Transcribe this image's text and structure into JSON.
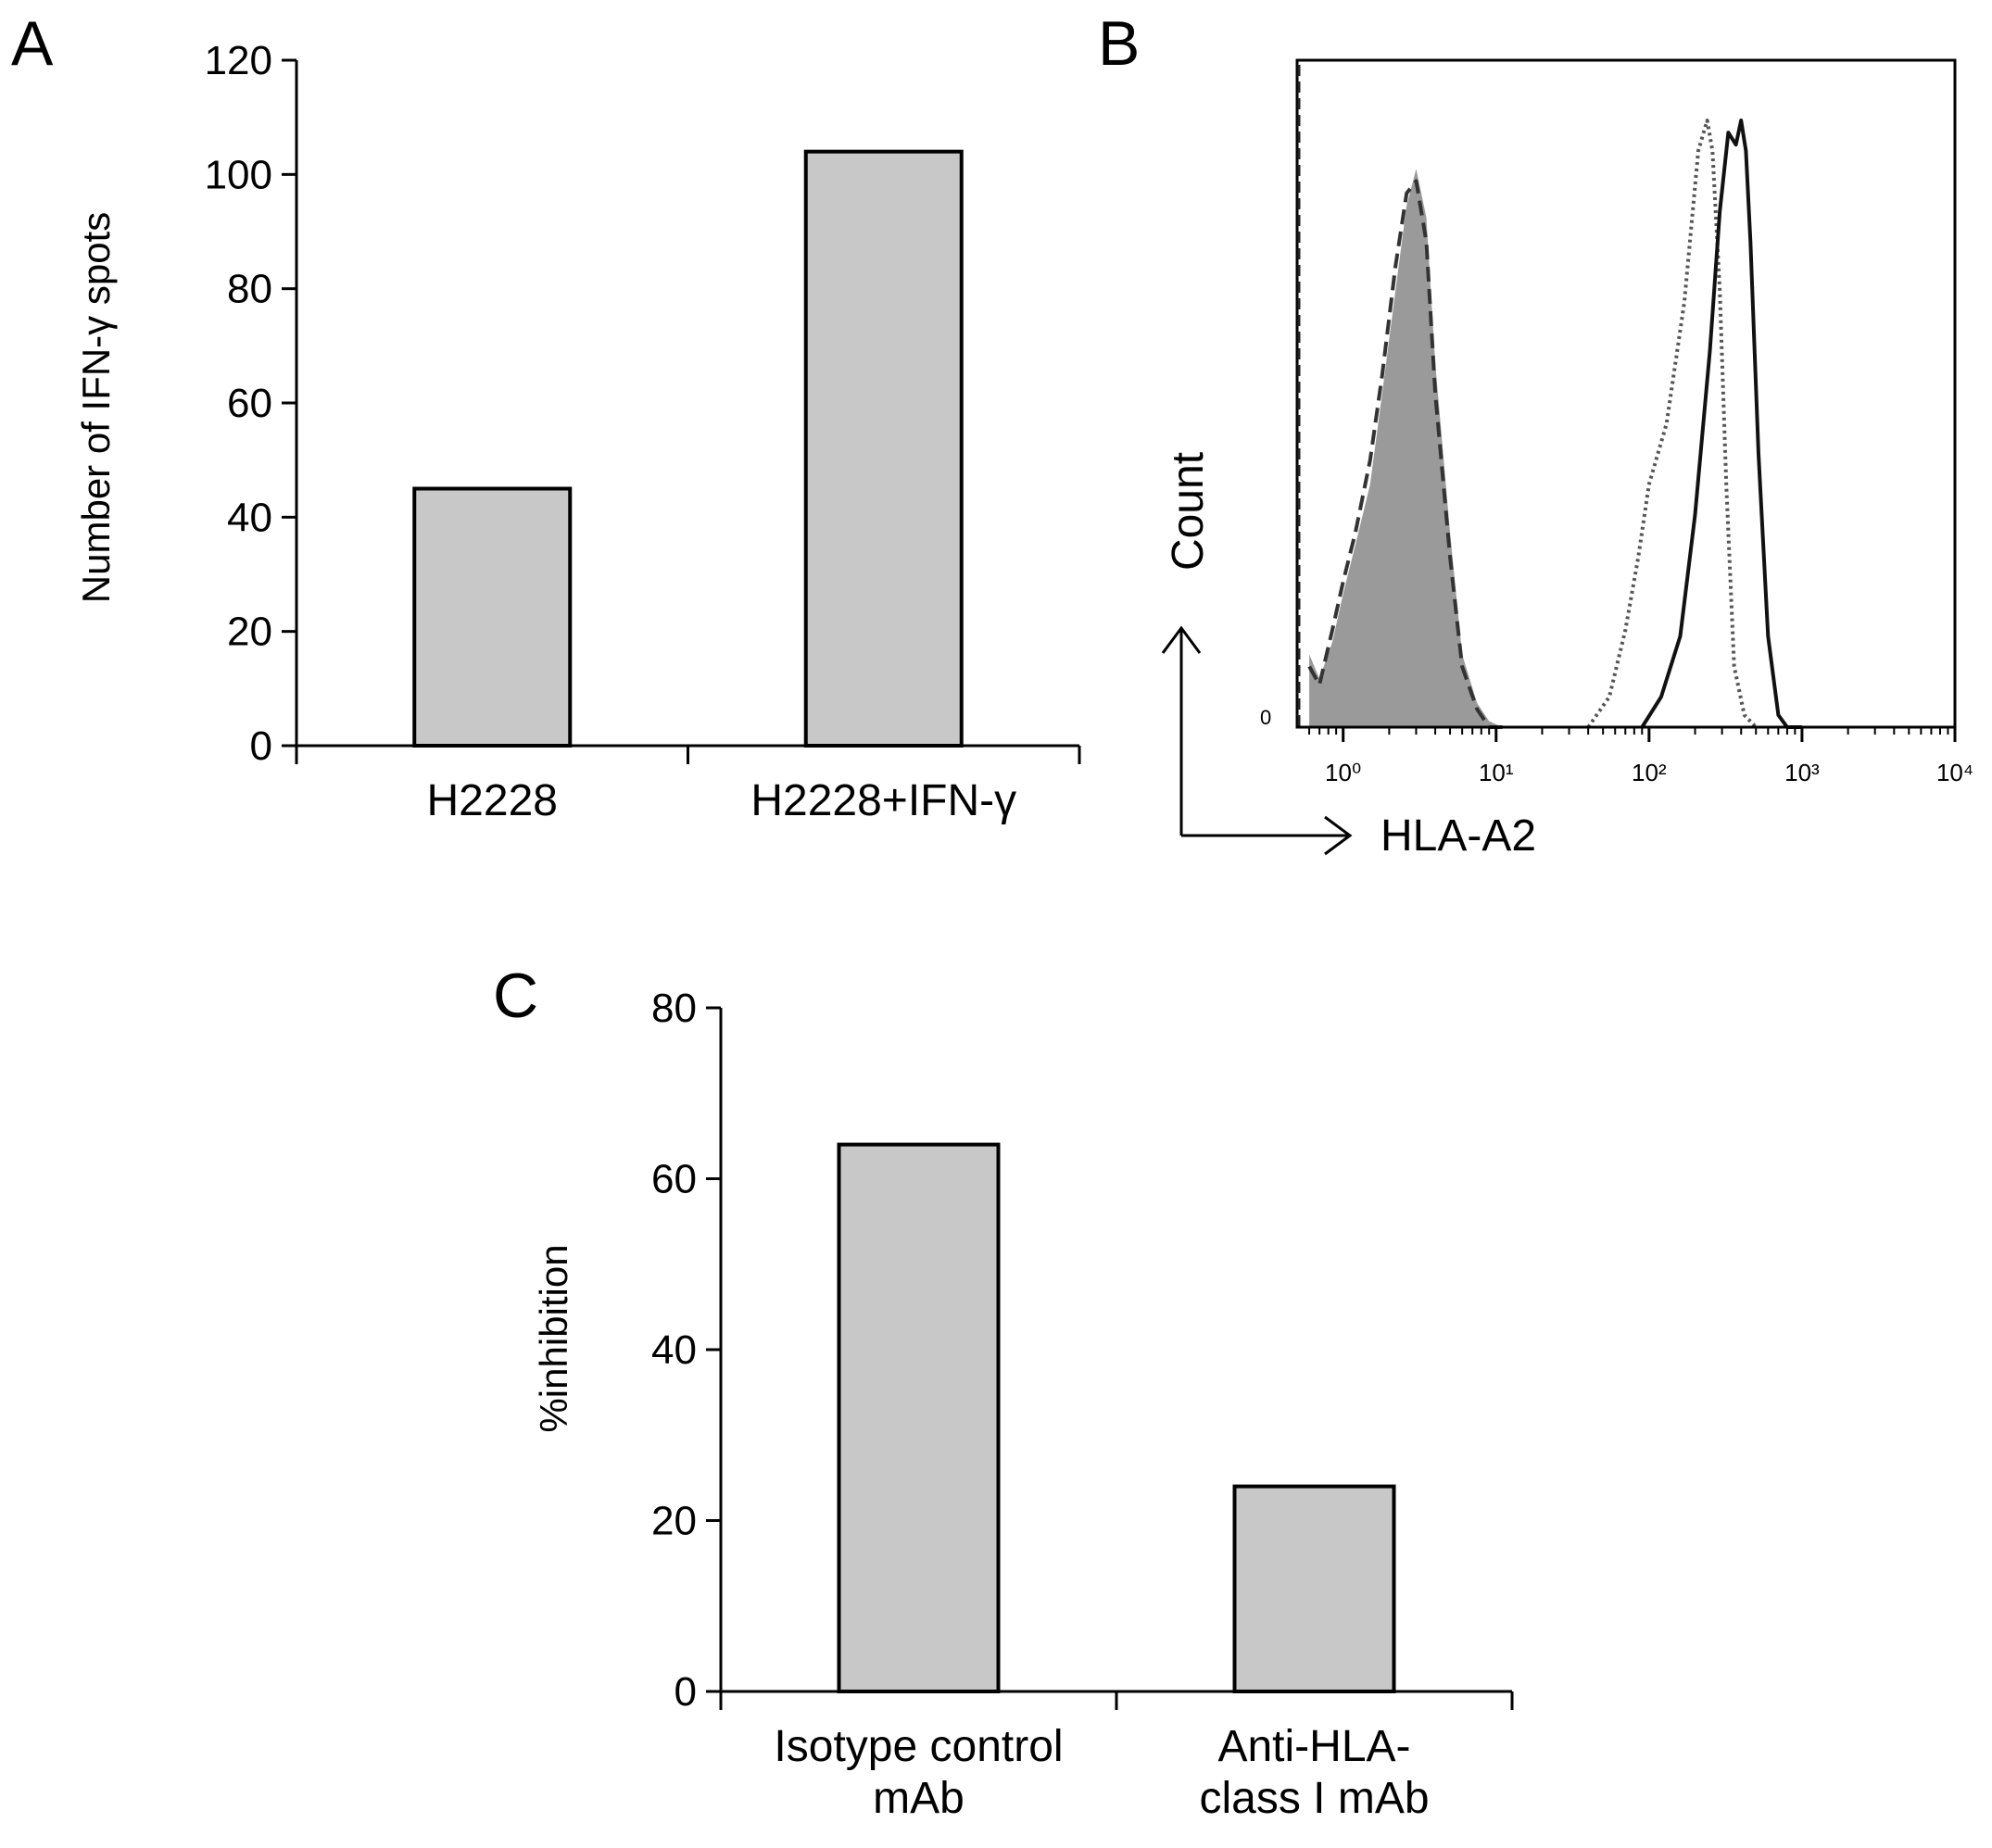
{
  "chart_data": [
    {
      "panel": "A",
      "type": "bar",
      "categories": [
        "H2228",
        "H2228+IFN-γ"
      ],
      "values": [
        45,
        104
      ],
      "xlabel": "",
      "ylabel": "Number of IFN-γ spots",
      "ylim": [
        0,
        120
      ],
      "yticks": [
        0,
        20,
        40,
        60,
        80,
        100,
        120
      ],
      "bar_color": "#c8c8c8",
      "grid": false
    },
    {
      "panel": "B",
      "type": "area",
      "xlabel": "HLA-A2",
      "ylabel": "Count",
      "xscale": "log",
      "xlim": [
        0.5,
        10000
      ],
      "xticks": [
        "10⁰",
        "10¹",
        "10²",
        "10³",
        "10⁴"
      ],
      "yticks": [
        "0"
      ],
      "series": [
        {
          "style": "filled-grey",
          "color": "#9a9a9a",
          "x": [
            0.6,
            0.7,
            0.85,
            1.0,
            1.2,
            1.5,
            1.8,
            2.2,
            2.6,
            3.0,
            3.5,
            4.0,
            5.0,
            6.0,
            7.5,
            9.0,
            11.0,
            14.0
          ],
          "y": [
            0.12,
            0.08,
            0.14,
            0.22,
            0.3,
            0.4,
            0.55,
            0.72,
            0.86,
            0.92,
            0.84,
            0.6,
            0.32,
            0.12,
            0.04,
            0.01,
            0.0,
            0.0
          ]
        },
        {
          "style": "dashed",
          "color": "#333333",
          "x": [
            0.6,
            0.7,
            0.85,
            1.0,
            1.2,
            1.5,
            1.8,
            2.2,
            2.6,
            3.0,
            3.5,
            4.0,
            5.0,
            6.0,
            7.5,
            9.0,
            11.0
          ],
          "y": [
            0.1,
            0.07,
            0.16,
            0.24,
            0.32,
            0.44,
            0.58,
            0.76,
            0.88,
            0.9,
            0.8,
            0.55,
            0.28,
            0.1,
            0.03,
            0.0,
            0.0
          ]
        },
        {
          "style": "dotted",
          "color": "#555555",
          "x": [
            40,
            55,
            70,
            85,
            100,
            130,
            170,
            210,
            240,
            260,
            290,
            320,
            360,
            420,
            500
          ],
          "y": [
            0.0,
            0.05,
            0.16,
            0.28,
            0.4,
            0.5,
            0.7,
            0.95,
            1.0,
            0.95,
            0.72,
            0.4,
            0.1,
            0.02,
            0.0
          ]
        },
        {
          "style": "solid",
          "color": "#111111",
          "x": [
            90,
            120,
            160,
            200,
            250,
            290,
            330,
            370,
            400,
            430,
            460,
            520,
            600,
            700,
            800,
            1000
          ],
          "y": [
            0.0,
            0.05,
            0.15,
            0.35,
            0.62,
            0.85,
            0.98,
            0.96,
            1.0,
            0.95,
            0.8,
            0.45,
            0.15,
            0.02,
            0.0,
            0.0
          ]
        }
      ]
    },
    {
      "panel": "C",
      "type": "bar",
      "categories": [
        "Isotype control mAb",
        "Anti-HLA-class I mAb"
      ],
      "category_lines": [
        [
          "Isotype control",
          "mAb"
        ],
        [
          "Anti-HLA-",
          "class I mAb"
        ]
      ],
      "values": [
        64,
        24
      ],
      "xlabel": "",
      "ylabel": "%inhibition",
      "ylim": [
        0,
        80
      ],
      "yticks": [
        0,
        20,
        40,
        60,
        80
      ],
      "bar_color": "#c8c8c8",
      "grid": false
    }
  ]
}
